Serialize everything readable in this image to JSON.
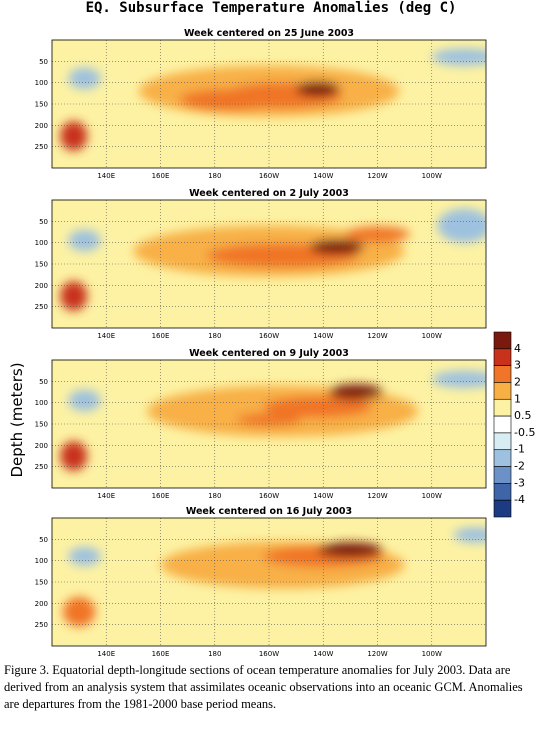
{
  "title": "EQ. Subsurface Temperature Anomalies (deg C)",
  "ylabel": "Depth (meters)",
  "caption": "Figure 3. Equatorial depth-longitude sections of ocean temperature anomalies for July 2003. Data are derived from an analysis system that assimilates oceanic observations into an oceanic GCM. Anomalies are departures from the 1981-2000 base period means.",
  "chart_data": {
    "type": "heatmap",
    "x_unit": "degrees longitude east",
    "xlim": [
      120,
      280
    ],
    "ylim": [
      300,
      0
    ],
    "x_ticks": [
      {
        "value": 140,
        "label": "140E"
      },
      {
        "value": 160,
        "label": "160E"
      },
      {
        "value": 180,
        "label": "180"
      },
      {
        "value": 200,
        "label": "160W"
      },
      {
        "value": 220,
        "label": "140W"
      },
      {
        "value": 240,
        "label": "120W"
      },
      {
        "value": 260,
        "label": "100W"
      }
    ],
    "y_ticks": [
      50,
      100,
      150,
      200,
      250
    ],
    "grid": true,
    "panels": [
      {
        "title": "Week centered on 25 June 2003",
        "features": [
          {
            "lon": 218,
            "depth": 115,
            "lon_radius": 8,
            "depth_radius": 18,
            "value": 3.5
          },
          {
            "lon": 205,
            "depth": 130,
            "lon_radius": 22,
            "depth_radius": 30,
            "value": 2.5
          },
          {
            "lon": 185,
            "depth": 140,
            "lon_radius": 18,
            "depth_radius": 25,
            "value": 2.2
          },
          {
            "lon": 200,
            "depth": 120,
            "lon_radius": 48,
            "depth_radius": 60,
            "value": 1.2
          },
          {
            "lon": 128,
            "depth": 225,
            "lon_radius": 5,
            "depth_radius": 35,
            "value": 3.2
          },
          {
            "lon": 132,
            "depth": 90,
            "lon_radius": 6,
            "depth_radius": 25,
            "value": -1.2
          },
          {
            "lon": 272,
            "depth": 40,
            "lon_radius": 12,
            "depth_radius": 20,
            "value": -1.5
          }
        ]
      },
      {
        "title": "Week centered on 2 July 2003",
        "features": [
          {
            "lon": 225,
            "depth": 110,
            "lon_radius": 10,
            "depth_radius": 18,
            "value": 3.5
          },
          {
            "lon": 205,
            "depth": 130,
            "lon_radius": 28,
            "depth_radius": 28,
            "value": 2.5
          },
          {
            "lon": 240,
            "depth": 80,
            "lon_radius": 12,
            "depth_radius": 18,
            "value": 2.3
          },
          {
            "lon": 200,
            "depth": 120,
            "lon_radius": 50,
            "depth_radius": 60,
            "value": 1.2
          },
          {
            "lon": 128,
            "depth": 225,
            "lon_radius": 5,
            "depth_radius": 35,
            "value": 3.2
          },
          {
            "lon": 132,
            "depth": 95,
            "lon_radius": 6,
            "depth_radius": 25,
            "value": -1.2
          },
          {
            "lon": 272,
            "depth": 60,
            "lon_radius": 10,
            "depth_radius": 40,
            "value": -1.5
          }
        ]
      },
      {
        "title": "Week centered on 9 July 2003",
        "features": [
          {
            "lon": 232,
            "depth": 75,
            "lon_radius": 10,
            "depth_radius": 18,
            "value": 3.6
          },
          {
            "lon": 218,
            "depth": 110,
            "lon_radius": 20,
            "depth_radius": 25,
            "value": 2.6
          },
          {
            "lon": 200,
            "depth": 140,
            "lon_radius": 12,
            "depth_radius": 15,
            "value": 2.1
          },
          {
            "lon": 205,
            "depth": 120,
            "lon_radius": 50,
            "depth_radius": 60,
            "value": 1.2
          },
          {
            "lon": 128,
            "depth": 225,
            "lon_radius": 5,
            "depth_radius": 35,
            "value": 3.2
          },
          {
            "lon": 132,
            "depth": 95,
            "lon_radius": 6,
            "depth_radius": 25,
            "value": -1.2
          },
          {
            "lon": 272,
            "depth": 45,
            "lon_radius": 12,
            "depth_radius": 20,
            "value": -1.6
          }
        ]
      },
      {
        "title": "Week centered on 16 July 2003",
        "features": [
          {
            "lon": 230,
            "depth": 75,
            "lon_radius": 12,
            "depth_radius": 18,
            "value": 3.6
          },
          {
            "lon": 220,
            "depth": 90,
            "lon_radius": 22,
            "depth_radius": 25,
            "value": 2.6
          },
          {
            "lon": 205,
            "depth": 110,
            "lon_radius": 45,
            "depth_radius": 55,
            "value": 1.2
          },
          {
            "lon": 130,
            "depth": 220,
            "lon_radius": 6,
            "depth_radius": 35,
            "value": 2.3
          },
          {
            "lon": 132,
            "depth": 90,
            "lon_radius": 6,
            "depth_radius": 22,
            "value": -1.2
          },
          {
            "lon": 276,
            "depth": 40,
            "lon_radius": 8,
            "depth_radius": 18,
            "value": -1.5
          }
        ]
      }
    ],
    "colorbar": {
      "levels": [
        {
          "label": "4",
          "color": "#7a1a0e"
        },
        {
          "label": "3",
          "color": "#c8311a"
        },
        {
          "label": "2",
          "color": "#f07528"
        },
        {
          "label": "1",
          "color": "#f8b046"
        },
        {
          "label": "0.5",
          "color": "#fdf2a3"
        },
        {
          "label": "-0.5",
          "color": "#ffffff"
        },
        {
          "label": "-1",
          "color": "#d8ecf4"
        },
        {
          "label": "-2",
          "color": "#9dc1df"
        },
        {
          "label": "-3",
          "color": "#6b91c6"
        },
        {
          "label": "-4",
          "color": "#3f64a8"
        },
        {
          "label": "",
          "color": "#1d3b83"
        }
      ]
    }
  }
}
